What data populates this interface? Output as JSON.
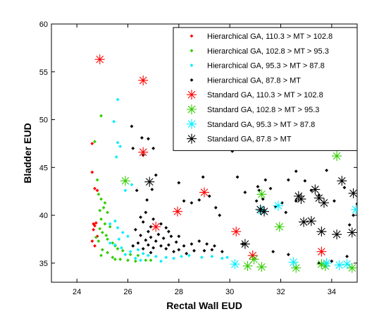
{
  "chart_data": {
    "type": "scatter",
    "title": "",
    "xlabel": "Rectal Wall EUD",
    "ylabel": "Bladder EUD",
    "xlim": [
      23,
      35
    ],
    "ylim": [
      33,
      60
    ],
    "xticks": [
      24,
      26,
      28,
      30,
      32,
      34
    ],
    "yticks": [
      35,
      40,
      45,
      50,
      55,
      60
    ],
    "grid": false,
    "legend_position": "top-right",
    "colors": {
      "red": "#ff0000",
      "green": "#33cc00",
      "cyan": "#00eeff",
      "black": "#000000"
    },
    "series": [
      {
        "name": "Hierarchical GA, 110.3 > MT > 102.8",
        "marker": "dot",
        "color": "#ff0000",
        "points": [
          [
            24.6,
            47.5
          ],
          [
            24.6,
            44.5
          ],
          [
            24.7,
            42.8
          ],
          [
            24.8,
            42.6
          ],
          [
            24.65,
            39.1
          ],
          [
            24.7,
            38.9
          ],
          [
            24.75,
            39.2
          ],
          [
            24.65,
            38.5
          ],
          [
            24.8,
            37.8
          ],
          [
            24.6,
            37.3
          ],
          [
            24.7,
            36.8
          ]
        ]
      },
      {
        "name": "Hierarchical GA, 102.8 > MT > 95.3",
        "marker": "dot",
        "color": "#33cc00",
        "points": [
          [
            24.95,
            50.4
          ],
          [
            24.7,
            47.7
          ],
          [
            24.8,
            43.7
          ],
          [
            24.85,
            42.2
          ],
          [
            24.95,
            41.7
          ],
          [
            25.1,
            41.3
          ],
          [
            25.05,
            40.8
          ],
          [
            24.9,
            40.5
          ],
          [
            25.2,
            40.3
          ],
          [
            24.95,
            39.6
          ],
          [
            25.1,
            39.1
          ],
          [
            25.3,
            38.8
          ],
          [
            24.9,
            38.6
          ],
          [
            25.0,
            38.2
          ],
          [
            25.15,
            37.9
          ],
          [
            24.75,
            37.7
          ],
          [
            25.2,
            37.5
          ],
          [
            24.85,
            37.3
          ],
          [
            25.4,
            37.1
          ],
          [
            25.5,
            36.8
          ],
          [
            25.0,
            36.4
          ],
          [
            25.6,
            36.5
          ],
          [
            25.8,
            36.3
          ],
          [
            25.2,
            36.1
          ],
          [
            26.1,
            35.9
          ],
          [
            24.95,
            35.8
          ],
          [
            25.4,
            35.6
          ],
          [
            26.4,
            35.8
          ],
          [
            25.7,
            35.4
          ],
          [
            26.0,
            35.3
          ],
          [
            26.3,
            35.2
          ],
          [
            26.7,
            35.3
          ],
          [
            25.5,
            35.4
          ],
          [
            26.9,
            35.3
          ]
        ]
      },
      {
        "name": "Hierarchical GA, 95.3 > MT > 87.8",
        "marker": "dot",
        "color": "#00eeff",
        "points": [
          [
            25.6,
            52.1
          ],
          [
            25.45,
            49.8
          ],
          [
            25.6,
            47.6
          ],
          [
            25.7,
            47.2
          ],
          [
            25.55,
            46.1
          ],
          [
            26.15,
            43.2
          ],
          [
            25.9,
            42.6
          ],
          [
            25.5,
            39.4
          ],
          [
            25.3,
            39.1
          ],
          [
            25.6,
            38.7
          ],
          [
            25.8,
            38.2
          ],
          [
            25.65,
            37.5
          ],
          [
            26.0,
            37.8
          ],
          [
            25.3,
            37.1
          ],
          [
            25.5,
            36.9
          ],
          [
            25.75,
            36.6
          ],
          [
            26.2,
            36.8
          ],
          [
            26.4,
            36.4
          ],
          [
            26.1,
            36.2
          ],
          [
            26.6,
            36.0
          ],
          [
            25.9,
            35.9
          ],
          [
            26.8,
            35.8
          ],
          [
            27.1,
            35.7
          ],
          [
            26.3,
            35.5
          ],
          [
            27.5,
            35.6
          ],
          [
            27.8,
            35.5
          ],
          [
            28.1,
            35.7
          ],
          [
            28.4,
            35.8
          ],
          [
            28.9,
            35.6
          ],
          [
            29.3,
            35.7
          ],
          [
            29.7,
            35.5
          ],
          [
            29.9,
            35.6
          ],
          [
            26.5,
            35.3
          ],
          [
            27.3,
            35.2
          ]
        ]
      },
      {
        "name": "Hierarchical GA, 87.8 > MT",
        "marker": "dot",
        "color": "#000000",
        "points": [
          [
            26.15,
            49.3
          ],
          [
            26.55,
            48.1
          ],
          [
            26.8,
            48.0
          ],
          [
            26.2,
            47.0
          ],
          [
            26.6,
            46.3
          ],
          [
            27.0,
            47.0
          ],
          [
            27.1,
            44.2
          ],
          [
            26.35,
            42.6
          ],
          [
            26.95,
            42.7
          ],
          [
            26.75,
            41.6
          ],
          [
            28.0,
            43.4
          ],
          [
            28.2,
            41.5
          ],
          [
            28.5,
            41.3
          ],
          [
            28.8,
            41.6
          ],
          [
            28.95,
            44.0
          ],
          [
            29.2,
            42.0
          ],
          [
            29.45,
            40.8
          ],
          [
            29.6,
            40.0
          ],
          [
            30.1,
            46.7
          ],
          [
            30.3,
            44.0
          ],
          [
            30.6,
            42.4
          ],
          [
            31.15,
            42.6
          ],
          [
            31.4,
            43.7
          ],
          [
            31.6,
            42.8
          ],
          [
            31.05,
            41.5
          ],
          [
            31.8,
            40.9
          ],
          [
            31.1,
            43.0
          ],
          [
            31.3,
            41.7
          ],
          [
            32.05,
            41.3
          ],
          [
            32.3,
            43.7
          ],
          [
            32.6,
            44.6
          ],
          [
            32.95,
            43.6
          ],
          [
            33.2,
            42.6
          ],
          [
            33.5,
            42.1
          ],
          [
            33.8,
            44.7
          ],
          [
            34.1,
            41.5
          ],
          [
            34.5,
            42.9
          ],
          [
            34.85,
            40.0
          ],
          [
            35.0,
            41.2
          ],
          [
            34.7,
            39.0
          ],
          [
            32.6,
            41.5
          ],
          [
            32.2,
            40.3
          ],
          [
            26.7,
            40.3
          ],
          [
            26.5,
            39.8
          ],
          [
            27.0,
            39.6
          ],
          [
            26.6,
            39.3
          ],
          [
            27.3,
            39.1
          ],
          [
            26.9,
            38.8
          ],
          [
            27.5,
            38.7
          ],
          [
            26.3,
            38.5
          ],
          [
            26.8,
            38.3
          ],
          [
            27.6,
            38.3
          ],
          [
            27.2,
            38.0
          ],
          [
            26.5,
            37.9
          ],
          [
            26.9,
            37.7
          ],
          [
            27.7,
            37.8
          ],
          [
            27.4,
            37.6
          ],
          [
            28.0,
            37.8
          ],
          [
            26.7,
            37.4
          ],
          [
            27.1,
            37.3
          ],
          [
            26.4,
            37.1
          ],
          [
            27.9,
            37.2
          ],
          [
            26.2,
            36.8
          ],
          [
            26.8,
            36.9
          ],
          [
            27.3,
            36.8
          ],
          [
            27.6,
            36.9
          ],
          [
            28.2,
            36.8
          ],
          [
            28.5,
            37.0
          ],
          [
            28.8,
            37.3
          ],
          [
            29.1,
            37.0
          ],
          [
            29.4,
            36.8
          ],
          [
            27.0,
            36.6
          ],
          [
            27.5,
            36.5
          ],
          [
            26.6,
            36.5
          ],
          [
            28.0,
            36.4
          ],
          [
            28.6,
            36.3
          ],
          [
            29.0,
            36.3
          ],
          [
            29.3,
            36.4
          ],
          [
            29.7,
            36.2
          ],
          [
            27.8,
            36.2
          ],
          [
            28.3,
            36.0
          ],
          [
            26.9,
            36.1
          ],
          [
            30.5,
            37.0
          ],
          [
            31.7,
            36.2
          ],
          [
            32.3,
            35.9
          ],
          [
            33.5,
            35.0
          ],
          [
            34.0,
            35.2
          ],
          [
            34.6,
            35.7
          ]
        ]
      },
      {
        "name": "Standard GA, 110.3 > MT > 102.8",
        "marker": "star",
        "color": "#ff0000",
        "points": [
          [
            24.9,
            56.3
          ],
          [
            26.6,
            54.1
          ],
          [
            26.6,
            46.6
          ],
          [
            29.0,
            42.4
          ],
          [
            27.95,
            40.4
          ],
          [
            27.1,
            38.8
          ],
          [
            30.25,
            38.3
          ],
          [
            30.9,
            35.8
          ],
          [
            33.6,
            36.2
          ]
        ]
      },
      {
        "name": "Standard GA, 102.8 > MT > 95.3",
        "marker": "star",
        "color": "#33cc00",
        "points": [
          [
            34.2,
            46.2
          ],
          [
            25.9,
            43.6
          ],
          [
            31.25,
            42.2
          ],
          [
            31.95,
            38.8
          ],
          [
            30.95,
            35.4
          ],
          [
            30.7,
            34.7
          ],
          [
            31.25,
            34.6
          ],
          [
            32.6,
            34.5
          ],
          [
            33.6,
            34.9
          ],
          [
            33.75,
            34.7
          ],
          [
            34.8,
            34.5
          ]
        ]
      },
      {
        "name": "Standard GA, 95.3 > MT > 87.8",
        "marker": "star",
        "color": "#00eeff",
        "points": [
          [
            34.95,
            40.6
          ],
          [
            31.9,
            41.0
          ],
          [
            31.25,
            40.5
          ],
          [
            30.2,
            34.9
          ],
          [
            32.5,
            35.1
          ],
          [
            33.8,
            35.0
          ],
          [
            34.3,
            34.8
          ],
          [
            34.6,
            34.9
          ]
        ]
      },
      {
        "name": "Standard GA, 87.8 > MT",
        "marker": "star",
        "color": "#000000",
        "points": [
          [
            26.85,
            43.5
          ],
          [
            34.4,
            43.6
          ],
          [
            34.85,
            42.3
          ],
          [
            33.35,
            42.7
          ],
          [
            32.7,
            42.0
          ],
          [
            32.8,
            41.7
          ],
          [
            33.5,
            41.8
          ],
          [
            33.7,
            41.3
          ],
          [
            31.2,
            40.6
          ],
          [
            31.35,
            40.4
          ],
          [
            32.9,
            39.3
          ],
          [
            33.2,
            39.4
          ],
          [
            33.6,
            38.3
          ],
          [
            34.2,
            38.0
          ],
          [
            34.8,
            38.2
          ],
          [
            30.6,
            37.0
          ]
        ]
      }
    ]
  }
}
